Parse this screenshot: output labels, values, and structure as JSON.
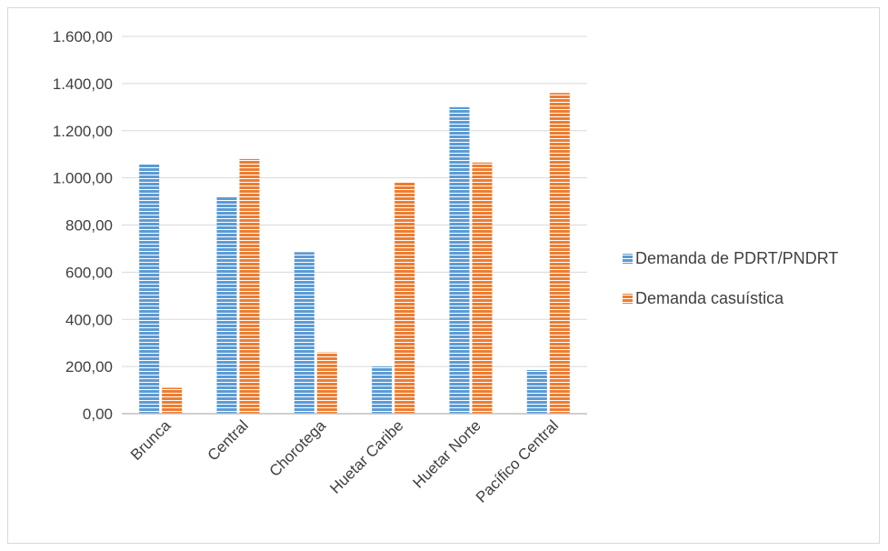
{
  "chart_data": {
    "type": "bar",
    "title": "",
    "xlabel": "",
    "ylabel": "",
    "categories": [
      "Brunca",
      "Central",
      "Chorotega",
      "Huetar Caribe",
      "Huetar Norte",
      "Pacífico Central"
    ],
    "series": [
      {
        "name": "Demanda de PDRT/PNDRT",
        "values": [
          1060,
          920,
          685,
          200,
          1300,
          185
        ],
        "color": "#5b9bd5",
        "pattern": "horizontal-stripes"
      },
      {
        "name": "Demanda casuística",
        "values": [
          110,
          1080,
          260,
          980,
          1065,
          1360
        ],
        "color": "#ed7d31",
        "pattern": "horizontal-stripes"
      }
    ],
    "ylim": [
      0,
      1600
    ],
    "yticks": [
      "0,00",
      "200,00",
      "400,00",
      "600,00",
      "800,00",
      "1.000,00",
      "1.200,00",
      "1.400,00",
      "1.600,00"
    ],
    "grid": true,
    "legend_position": "right"
  }
}
